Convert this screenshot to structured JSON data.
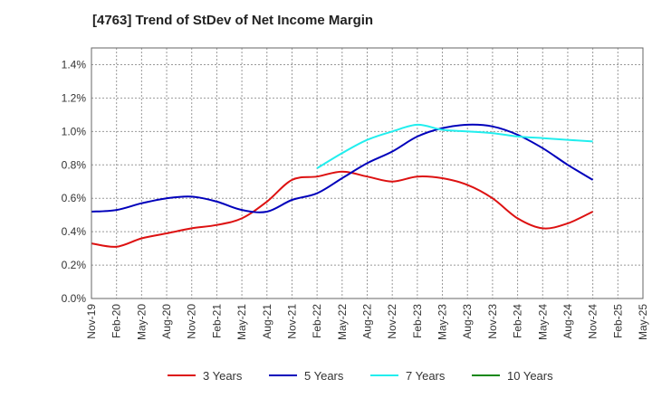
{
  "chart_data": {
    "type": "line",
    "title": "[4763]  Trend of StDev of Net Income Margin",
    "xlabel": "",
    "ylabel": "",
    "ylim": [
      0,
      1.5
    ],
    "yticks": [
      "0.0%",
      "0.2%",
      "0.4%",
      "0.6%",
      "0.8%",
      "1.0%",
      "1.2%",
      "1.4%"
    ],
    "ytick_values": [
      0,
      0.2,
      0.4,
      0.6,
      0.8,
      1.0,
      1.2,
      1.4
    ],
    "categories": [
      "Nov-19",
      "Feb-20",
      "May-20",
      "Aug-20",
      "Nov-20",
      "Feb-21",
      "May-21",
      "Aug-21",
      "Nov-21",
      "Feb-22",
      "May-22",
      "Aug-22",
      "Nov-22",
      "Feb-23",
      "May-23",
      "Aug-23",
      "Nov-23",
      "Feb-24",
      "May-24",
      "Aug-24",
      "Nov-24",
      "Feb-25",
      "May-25"
    ],
    "grid": true,
    "legend_position": "bottom",
    "series": [
      {
        "name": "3 Years",
        "color": "#dd1111",
        "values": [
          0.33,
          0.31,
          0.36,
          0.39,
          0.42,
          0.44,
          0.48,
          0.58,
          0.71,
          0.73,
          0.76,
          0.73,
          0.7,
          0.73,
          0.72,
          0.68,
          0.6,
          0.48,
          0.42,
          0.45,
          0.52,
          null,
          null
        ]
      },
      {
        "name": "5 Years",
        "color": "#0000bb",
        "values": [
          0.52,
          0.53,
          0.57,
          0.6,
          0.61,
          0.58,
          0.53,
          0.52,
          0.59,
          0.63,
          0.72,
          0.81,
          0.88,
          0.97,
          1.02,
          1.04,
          1.03,
          0.98,
          0.9,
          0.8,
          0.71,
          null,
          null
        ]
      },
      {
        "name": "7 Years",
        "color": "#22eeee",
        "values": [
          null,
          null,
          null,
          null,
          null,
          null,
          null,
          null,
          null,
          0.78,
          0.87,
          0.95,
          1.0,
          1.04,
          1.01,
          1.0,
          0.99,
          0.97,
          0.96,
          0.95,
          0.94,
          null,
          null
        ]
      },
      {
        "name": "10 Years",
        "color": "#118811",
        "values": [
          null,
          null,
          null,
          null,
          null,
          null,
          null,
          null,
          null,
          null,
          null,
          null,
          null,
          null,
          null,
          null,
          null,
          null,
          null,
          null,
          null,
          null,
          null
        ]
      }
    ]
  }
}
